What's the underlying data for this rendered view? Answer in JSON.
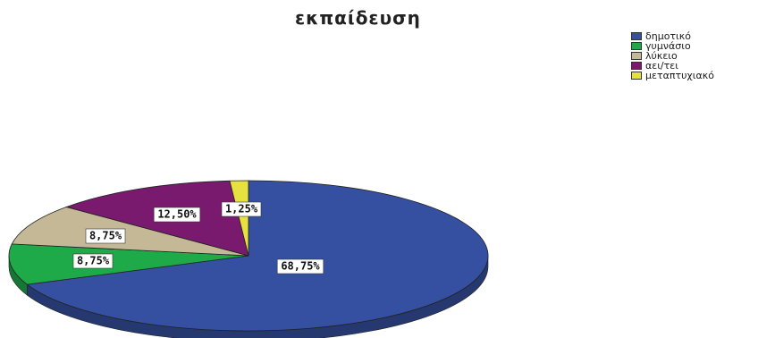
{
  "chart_data": {
    "type": "pie",
    "title": "εκπαίδευση",
    "slices": [
      {
        "name": "δημοτικό",
        "value": 68.75,
        "label": "68,75%",
        "color": "#3550a0"
      },
      {
        "name": "γυμνάσιο",
        "value": 8.75,
        "label": "8,75%",
        "color": "#1faa4a"
      },
      {
        "name": "λύκειο",
        "value": 8.75,
        "label": "8,75%",
        "color": "#c4b896"
      },
      {
        "name": "αει/τει",
        "value": 12.5,
        "label": "12,50%",
        "color": "#7a1a6e"
      },
      {
        "name": "μεταπτυχιακό",
        "value": 1.25,
        "label": "1,25%",
        "color": "#e6e040"
      }
    ],
    "legend_position": "top-right"
  }
}
